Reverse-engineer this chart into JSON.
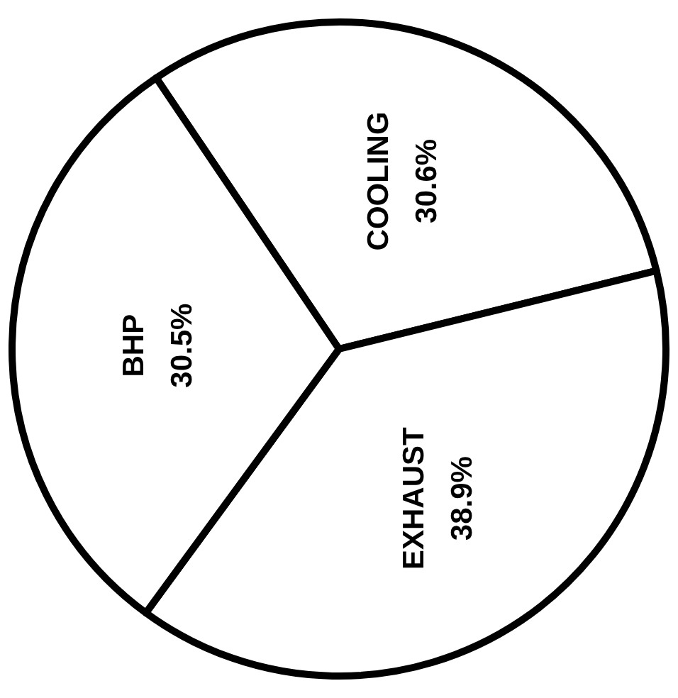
{
  "chart_data": {
    "type": "pie",
    "categories": [
      "COOLING",
      "EXHAUST",
      "BHP"
    ],
    "values": [
      30.6,
      38.9,
      30.5
    ],
    "value_labels": [
      "30.6%",
      "38.9%",
      "30.5%"
    ],
    "colors": [
      "#ffffff",
      "#ffffff",
      "#ffffff"
    ],
    "legend": false
  }
}
